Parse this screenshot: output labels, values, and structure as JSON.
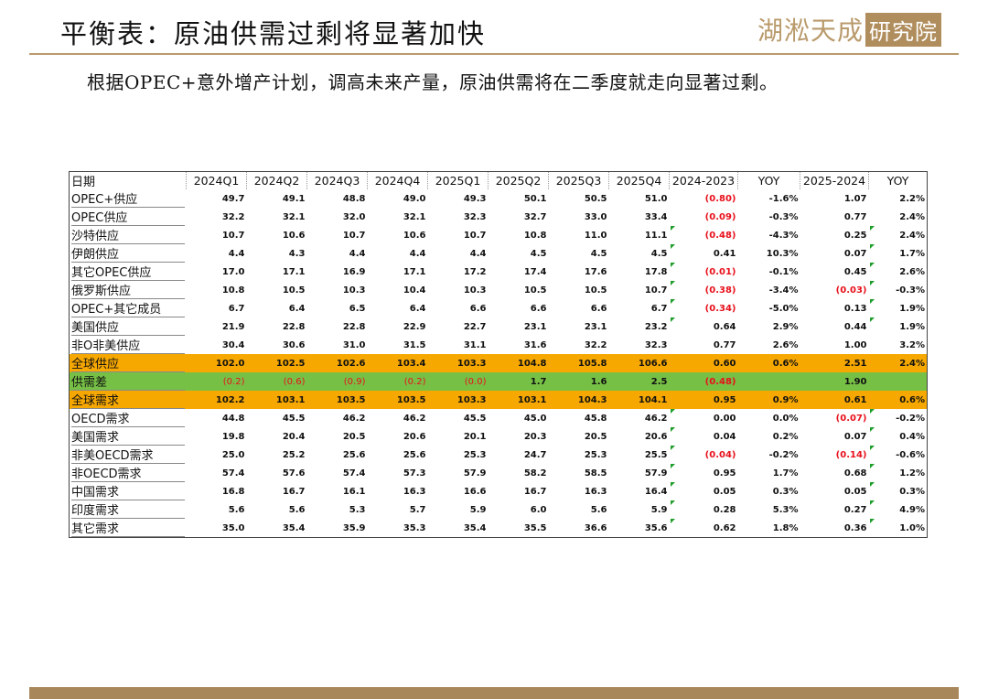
{
  "title": "平衡表：原油供需过剩将显著加快",
  "logo": {
    "main": "湖淞天成",
    "box": "研究院"
  },
  "subtitle": "根据OPEC+意外增产计划，调高未来产量，原油供需将在二季度就走向显著过剩。",
  "table": {
    "columns": [
      "日期",
      "2024Q1",
      "2024Q2",
      "2024Q3",
      "2024Q4",
      "2025Q1",
      "2025Q2",
      "2025Q3",
      "2025Q4",
      "2024-2023",
      "YOY",
      "2025-2024",
      "YOY"
    ],
    "rows": [
      {
        "label": "OPEC+供应",
        "values": [
          "49.7",
          "49.1",
          "48.8",
          "49.0",
          "49.3",
          "50.1",
          "50.5",
          "51.0",
          "(0.80)",
          "-1.6%",
          "1.07",
          "2.2%"
        ]
      },
      {
        "label": "OPEC供应",
        "values": [
          "32.2",
          "32.1",
          "32.0",
          "32.1",
          "32.3",
          "32.7",
          "33.0",
          "33.4",
          "(0.09)",
          "-0.3%",
          "0.77",
          "2.4%"
        ]
      },
      {
        "label": "沙特供应",
        "values": [
          "10.7",
          "10.6",
          "10.7",
          "10.6",
          "10.7",
          "10.8",
          "11.0",
          "11.1",
          "(0.48)",
          "-4.3%",
          "0.25",
          "2.4%"
        ]
      },
      {
        "label": "伊朗供应",
        "values": [
          "4.4",
          "4.3",
          "4.4",
          "4.4",
          "4.4",
          "4.5",
          "4.5",
          "4.5",
          "0.41",
          "10.3%",
          "0.07",
          "1.7%"
        ]
      },
      {
        "label": "其它OPEC供应",
        "values": [
          "17.0",
          "17.1",
          "16.9",
          "17.1",
          "17.2",
          "17.4",
          "17.6",
          "17.8",
          "(0.01)",
          "-0.1%",
          "0.45",
          "2.6%"
        ]
      },
      {
        "label": "俄罗斯供应",
        "values": [
          "10.8",
          "10.5",
          "10.3",
          "10.4",
          "10.3",
          "10.5",
          "10.5",
          "10.7",
          "(0.38)",
          "-3.4%",
          "(0.03)",
          "-0.3%"
        ]
      },
      {
        "label": "OPEC+其它成员",
        "values": [
          "6.7",
          "6.4",
          "6.5",
          "6.4",
          "6.6",
          "6.6",
          "6.6",
          "6.7",
          "(0.34)",
          "-5.0%",
          "0.13",
          "1.9%"
        ]
      },
      {
        "label": "美国供应",
        "values": [
          "21.9",
          "22.8",
          "22.8",
          "22.9",
          "22.7",
          "23.1",
          "23.1",
          "23.2",
          "0.64",
          "2.9%",
          "0.44",
          "1.9%"
        ]
      },
      {
        "label": "非O非美供应",
        "values": [
          "30.4",
          "30.6",
          "31.0",
          "31.5",
          "31.1",
          "31.6",
          "32.2",
          "32.3",
          "0.77",
          "2.6%",
          "1.00",
          "3.2%"
        ]
      },
      {
        "label": "全球供应",
        "values": [
          "102.0",
          "102.5",
          "102.6",
          "103.4",
          "103.3",
          "104.8",
          "105.8",
          "106.6",
          "0.60",
          "0.6%",
          "2.51",
          "2.4%"
        ]
      },
      {
        "label": "供需差",
        "values": [
          "(0.2)",
          "(0.6)",
          "(0.9)",
          "(0.2)",
          "(0.0)",
          "1.7",
          "1.6",
          "2.5",
          "(0.48)",
          "",
          "1.90",
          ""
        ]
      },
      {
        "label": "全球需求",
        "values": [
          "102.2",
          "103.1",
          "103.5",
          "103.5",
          "103.3",
          "103.1",
          "104.3",
          "104.1",
          "0.95",
          "0.9%",
          "0.61",
          "0.6%"
        ]
      },
      {
        "label": "OECD需求",
        "values": [
          "44.8",
          "45.5",
          "46.2",
          "46.2",
          "45.5",
          "45.0",
          "45.8",
          "46.2",
          "0.00",
          "0.0%",
          "(0.07)",
          "-0.2%"
        ]
      },
      {
        "label": "美国需求",
        "values": [
          "19.8",
          "20.4",
          "20.5",
          "20.6",
          "20.1",
          "20.3",
          "20.5",
          "20.6",
          "0.04",
          "0.2%",
          "0.07",
          "0.4%"
        ]
      },
      {
        "label": "非美OECD需求",
        "values": [
          "25.0",
          "25.2",
          "25.6",
          "25.6",
          "25.3",
          "24.7",
          "25.3",
          "25.5",
          "(0.04)",
          "-0.2%",
          "(0.14)",
          "-0.6%"
        ]
      },
      {
        "label": "非OECD需求",
        "values": [
          "57.4",
          "57.6",
          "57.4",
          "57.3",
          "57.9",
          "58.2",
          "58.5",
          "57.9",
          "0.95",
          "1.7%",
          "0.68",
          "1.2%"
        ]
      },
      {
        "label": "中国需求",
        "values": [
          "16.8",
          "16.7",
          "16.1",
          "16.3",
          "16.6",
          "16.7",
          "16.3",
          "16.4",
          "0.05",
          "0.3%",
          "0.05",
          "0.3%"
        ]
      },
      {
        "label": "印度需求",
        "values": [
          "5.6",
          "5.6",
          "5.3",
          "5.7",
          "5.9",
          "6.0",
          "5.6",
          "5.9",
          "0.28",
          "5.3%",
          "0.27",
          "4.9%"
        ]
      },
      {
        "label": "其它需求",
        "values": [
          "35.0",
          "35.4",
          "35.9",
          "35.3",
          "35.4",
          "35.5",
          "36.6",
          "35.6",
          "0.62",
          "1.8%",
          "0.36",
          "1.0%"
        ]
      }
    ],
    "colors": {
      "supply_total": "#f7a800",
      "gap": "#77c046",
      "demand_total": "#f7a800",
      "negative": "#e8101b",
      "marker": "#1f9d2b"
    }
  }
}
